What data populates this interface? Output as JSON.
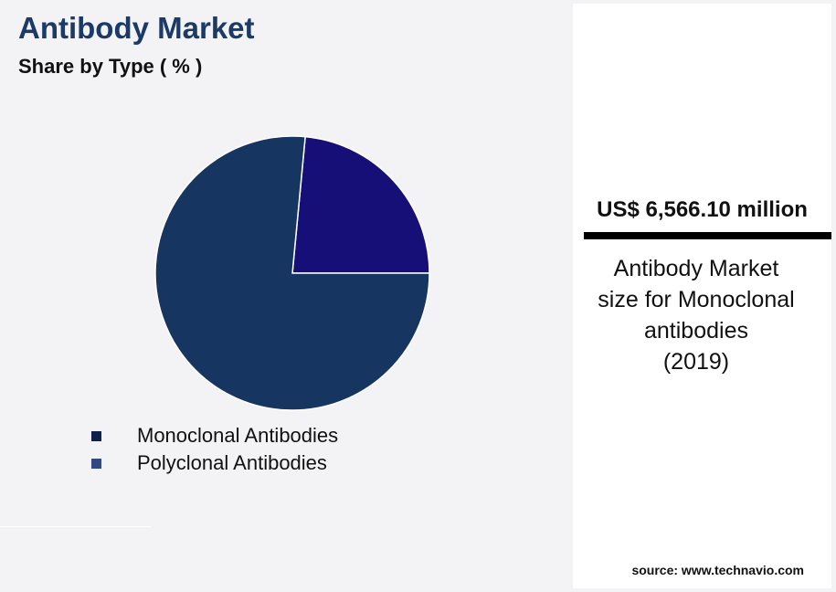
{
  "chart_data": {
    "type": "pie",
    "title": "Antibody Market",
    "subtitle": "Share by Type ( % )",
    "slices": [
      {
        "label": "Monoclonal Antibodies",
        "value": 76.5,
        "color": "#163560",
        "legend_color": "#0f2147"
      },
      {
        "label": "Polyclonal Antibodies",
        "value": 23.5,
        "color": "#170f78",
        "legend_color": "#34497f"
      }
    ],
    "legend_position": "bottom-left"
  },
  "panel": {
    "value": "US$ 6,566.10 million",
    "description_lines": [
      "Antibody Market",
      "size for Monoclonal",
      "antibodies",
      "(2019)"
    ],
    "source": "source: www.technavio.com"
  }
}
